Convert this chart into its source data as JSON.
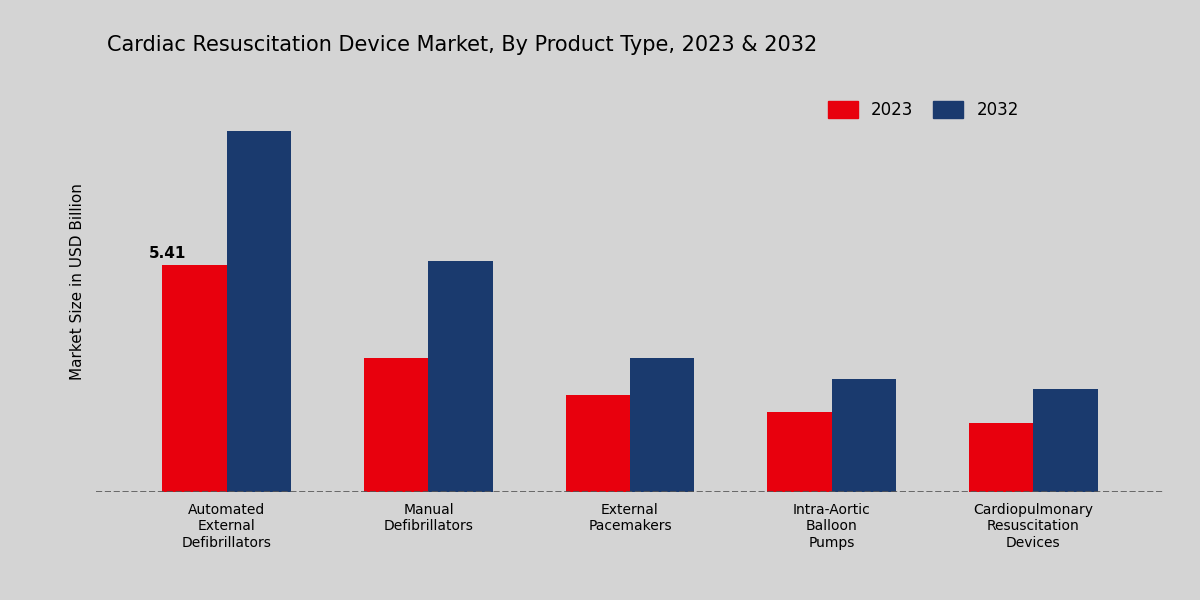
{
  "title": "Cardiac Resuscitation Device Market, By Product Type, 2023 & 2032",
  "ylabel": "Market Size in USD Billion",
  "categories": [
    "Automated\nExternal\nDefibrillators",
    "Manual\nDefibrillators",
    "External\nPacemakers",
    "Intra-Aortic\nBalloon\nPumps",
    "Cardiopulmonary\nResuscitation\nDevices"
  ],
  "values_2023": [
    5.41,
    3.2,
    2.3,
    1.9,
    1.65
  ],
  "values_2032": [
    8.6,
    5.5,
    3.2,
    2.7,
    2.45
  ],
  "color_2023": "#e8000d",
  "color_2032": "#1a3a6e",
  "label_2023": "2023",
  "label_2032": "2032",
  "bar_width": 0.32,
  "annotation_value": "5.41",
  "bg_color": "#d8d8d8",
  "ylim": [
    0,
    10
  ],
  "dashed_line_y": 0
}
